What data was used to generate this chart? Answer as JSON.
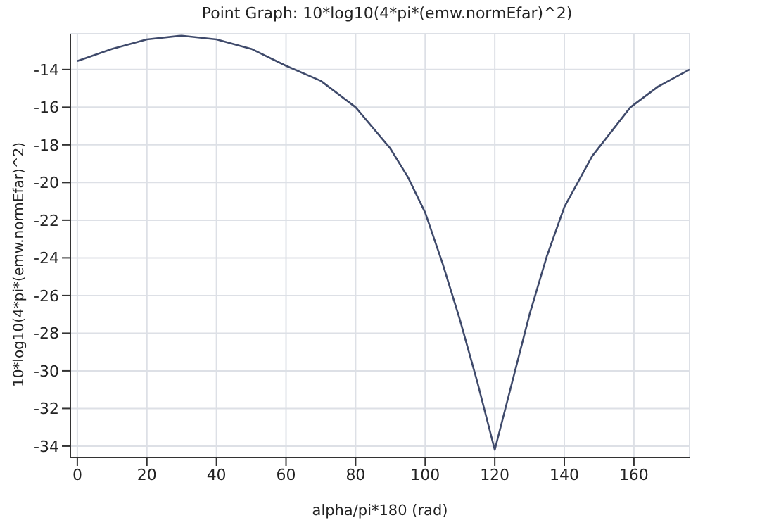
{
  "chart_data": {
    "type": "line",
    "title": "Point Graph: 10*log10(4*pi*(emw.normEfar)^2)",
    "xlabel": "alpha/pi*180 (rad)",
    "ylabel": "10*log10(4*pi*(emw.normEfar)^2)",
    "x": [
      0,
      10,
      20,
      30,
      40,
      50,
      60,
      70,
      80,
      90,
      95,
      100,
      105,
      110,
      115,
      120,
      125,
      130,
      135,
      140,
      148,
      159,
      167,
      176
    ],
    "series": [
      {
        "color": "#3f4a6b",
        "values": [
          -13.55,
          -12.9,
          -12.4,
          -12.2,
          -12.4,
          -12.9,
          -13.8,
          -14.6,
          -16.0,
          -18.2,
          -19.7,
          -21.6,
          -24.3,
          -27.3,
          -30.6,
          -34.2,
          -30.6,
          -27.0,
          -23.9,
          -21.3,
          -18.6,
          -16.0,
          -14.9,
          -14.0
        ]
      }
    ],
    "xlim": [
      -2,
      176
    ],
    "xticks": [
      0,
      20,
      40,
      60,
      80,
      100,
      120,
      140,
      160
    ],
    "ylim": [
      -34.6,
      -12.1
    ],
    "yticks": [
      -34,
      -32,
      -30,
      -28,
      -26,
      -24,
      -22,
      -20,
      -18,
      -16,
      -14
    ],
    "grid": true,
    "legend": false,
    "marker": "none",
    "line_style": "solid"
  }
}
